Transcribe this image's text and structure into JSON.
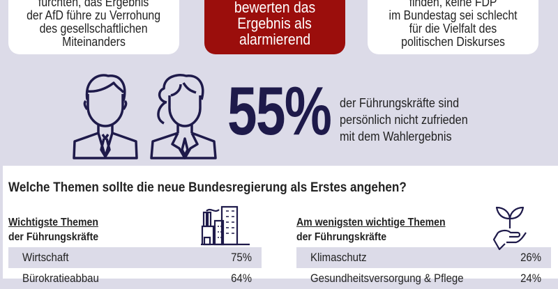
{
  "boxes": {
    "left": [
      "fürchten, das Ergebnis",
      "der AfD führe zu Verrohung",
      "des gesellschaftlichen",
      "Miteinanders"
    ],
    "center": [
      "bewerten das",
      "Ergebnis als",
      "alarmierend"
    ],
    "right": [
      "finden, keine FDP",
      "im Bundestag sei schlecht",
      "für die Vielfalt des",
      "politischen Diskurses"
    ]
  },
  "stat": {
    "value": "55%",
    "lines": [
      "der Führungskräfte sind",
      "persönlich nicht zufrieden",
      "mit dem Wahlergebnis"
    ]
  },
  "question": "Welche Themen sollte die neue Bundesregierung als Erstes angehen?",
  "most": {
    "title": "Wichtigste Themen",
    "subtitle": "der Führungskräfte",
    "icon": "industry-buildings-icon",
    "rows": [
      {
        "label": "Wirtschaft",
        "value": "75%"
      },
      {
        "label": "Bürokratieabbau",
        "value": "64%"
      }
    ]
  },
  "least": {
    "title": "Am wenigsten wichtige Themen",
    "subtitle": "der Führungskräfte",
    "icon": "plant-in-hand-icon",
    "rows": [
      {
        "label": "Klimaschutz",
        "value": "26%"
      },
      {
        "label": "Gesundheitsversorgung & Pflege",
        "value": "24%"
      }
    ]
  },
  "colors": {
    "accent_red": "#9b0e0c",
    "navy": "#1e1a4a",
    "background": "#dcdbe8"
  }
}
